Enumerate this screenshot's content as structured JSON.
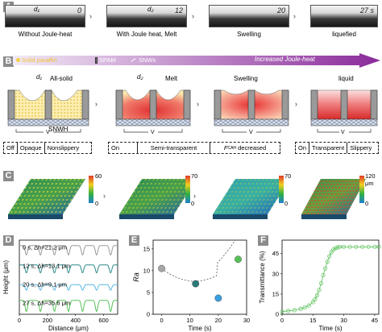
{
  "panels": {
    "a": "A",
    "b": "B",
    "c": "C",
    "d": "D",
    "e": "E",
    "f": "F"
  },
  "panel_a": {
    "frames": [
      {
        "time": "0",
        "d_label": "d₁",
        "caption": "Without Joule-heat"
      },
      {
        "time": "12",
        "d_label": "d₂",
        "caption": "With Joule heat, Melt"
      },
      {
        "time": "20",
        "d_label": "",
        "caption": "Swelling"
      },
      {
        "time": "27 s",
        "d_label": "",
        "caption": "liquefied"
      }
    ]
  },
  "panel_b": {
    "legend": {
      "paraffin": "Solid paraffin",
      "spam": "SPAM",
      "snws": "SNWs"
    },
    "arrow_text": "Increased Joule-heat",
    "states": [
      {
        "title": "All-solid",
        "d_label": "d₁",
        "sublabel": "SNWH",
        "v": "V"
      },
      {
        "title": "Melt",
        "d_label": "d₂",
        "v": "V"
      },
      {
        "title": "Swelling",
        "v": "V"
      },
      {
        "title": "liquid",
        "v": "V"
      }
    ],
    "status1": [
      "Off",
      "Opaque",
      "Nonslippery"
    ],
    "status2": [
      "On",
      "Semi-transparent",
      "F",
      "CAH",
      "decreased"
    ],
    "status3": [
      "On",
      "Transparent",
      "Slippery"
    ]
  },
  "panel_c": {
    "scales": [
      {
        "max": "60",
        "min": "0"
      },
      {
        "max": "70",
        "min": "0"
      },
      {
        "max": "70",
        "min": "0"
      },
      {
        "max": "120 μm",
        "min": "0"
      }
    ]
  },
  "chart_data": [
    {
      "type": "line",
      "panel": "D",
      "xlabel": "Distance (μm)",
      "ylabel": "Height (μm)",
      "xticks": [
        "0",
        "200",
        "400",
        "600"
      ],
      "xlim": [
        0,
        700
      ],
      "series": [
        {
          "name": "0 s, Δh=21.2 μm",
          "color": "#9a9a9a"
        },
        {
          "name": "12 s, Δh=13.1 μm",
          "color": "#2a8a8a"
        },
        {
          "name": "20 s, Δh=9.1 μm",
          "color": "#58b8e0"
        },
        {
          "name": "27 s, Δh=35.6 μm",
          "color": "#58c058"
        }
      ]
    },
    {
      "type": "scatter",
      "panel": "E",
      "xlabel": "Time (s)",
      "ylabel": "Ra",
      "xlim": [
        -3,
        30
      ],
      "ylim": [
        0,
        17
      ],
      "xticks": [
        "0",
        "10",
        "20",
        "30"
      ],
      "yticks": [
        "0",
        "5",
        "10",
        "15"
      ],
      "x": [
        0,
        12,
        20,
        27
      ],
      "y": [
        10.5,
        7,
        3.7,
        12.6
      ],
      "colors": [
        "#a6a6a6",
        "#2a7a7a",
        "#3aa0e0",
        "#58c058"
      ]
    },
    {
      "type": "line",
      "panel": "F",
      "xlabel": "Time (s)",
      "ylabel": "Transmittance (%)",
      "xlim": [
        0,
        47
      ],
      "ylim": [
        0,
        55
      ],
      "xticks": [
        "0",
        "15",
        "30",
        "45"
      ],
      "yticks": [
        "0",
        "15",
        "30",
        "45"
      ],
      "x": [
        0,
        3,
        6,
        9,
        11,
        13,
        15,
        16,
        17,
        18,
        19,
        20,
        21,
        22,
        23,
        24,
        25,
        26,
        27,
        28,
        30,
        33,
        36,
        39,
        42,
        45,
        47
      ],
      "y": [
        2,
        2.5,
        3,
        4,
        5,
        6.5,
        9,
        11,
        14,
        18,
        23,
        29,
        34,
        39,
        43,
        46,
        48,
        49,
        49.5,
        50,
        50,
        50,
        50,
        50,
        50,
        50,
        50
      ],
      "color": "#58c058"
    }
  ]
}
